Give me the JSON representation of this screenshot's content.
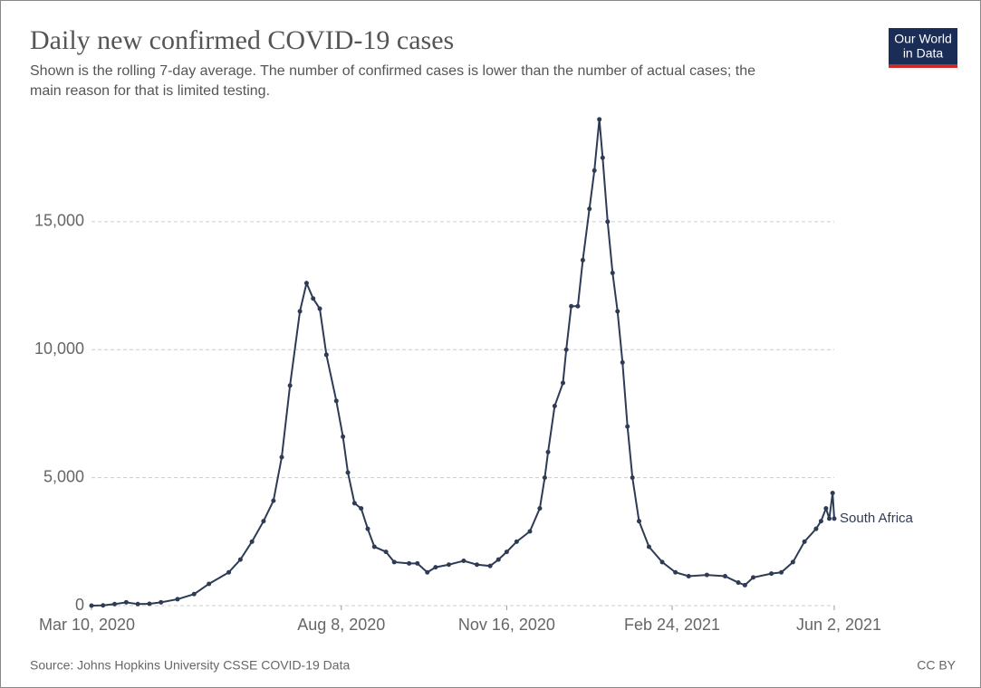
{
  "chart_data": {
    "type": "line",
    "title": "Daily new confirmed COVID-19 cases",
    "subtitle": [
      "Shown is the rolling 7-day average. The number of confirmed cases is lower than the number of actual cases; the",
      "main reason for that is limited testing."
    ],
    "logo": [
      "Our World",
      "in Data"
    ],
    "source": "Source: Johns Hopkins University CSSE COVID-19 Data",
    "license": "CC BY",
    "x": [
      "2020-03-10",
      "2020-03-17",
      "2020-03-24",
      "2020-03-31",
      "2020-04-07",
      "2020-04-14",
      "2020-04-21",
      "2020-05-01",
      "2020-05-11",
      "2020-05-20",
      "2020-06-01",
      "2020-06-08",
      "2020-06-15",
      "2020-06-22",
      "2020-06-28",
      "2020-07-03",
      "2020-07-08",
      "2020-07-14",
      "2020-07-18",
      "2020-07-22",
      "2020-07-26",
      "2020-07-30",
      "2020-08-05",
      "2020-08-09",
      "2020-08-12",
      "2020-08-16",
      "2020-08-20",
      "2020-08-24",
      "2020-08-28",
      "2020-09-04",
      "2020-09-09",
      "2020-09-18",
      "2020-09-23",
      "2020-09-29",
      "2020-10-04",
      "2020-10-12",
      "2020-10-21",
      "2020-10-29",
      "2020-11-06",
      "2020-11-11",
      "2020-11-16",
      "2020-11-22",
      "2020-11-30",
      "2020-12-06",
      "2020-12-09",
      "2020-12-11",
      "2020-12-15",
      "2020-12-20",
      "2020-12-22",
      "2020-12-25",
      "2020-12-29",
      "2021-01-01",
      "2021-01-05",
      "2021-01-08",
      "2021-01-11",
      "2021-01-13",
      "2021-01-16",
      "2021-01-19",
      "2021-01-22",
      "2021-01-25",
      "2021-01-28",
      "2021-01-31",
      "2021-02-04",
      "2021-02-10",
      "2021-02-18",
      "2021-02-26",
      "2021-03-06",
      "2021-03-17",
      "2021-03-28",
      "2021-04-05",
      "2021-04-09",
      "2021-04-14",
      "2021-04-25",
      "2021-05-01",
      "2021-05-08",
      "2021-05-15",
      "2021-05-22",
      "2021-05-25",
      "2021-05-28",
      "2021-05-30",
      "2021-06-01",
      "2021-06-02"
    ],
    "series": [
      {
        "name": "South Africa",
        "color": "#2d3b55",
        "values": [
          0,
          10,
          60,
          130,
          60,
          70,
          130,
          250,
          450,
          850,
          1300,
          1800,
          2500,
          3300,
          4100,
          5800,
          8600,
          11500,
          12600,
          12000,
          11600,
          9800,
          8000,
          6600,
          5200,
          4000,
          3800,
          3000,
          2300,
          2100,
          1700,
          1650,
          1650,
          1300,
          1500,
          1600,
          1750,
          1600,
          1550,
          1800,
          2100,
          2500,
          2900,
          3800,
          5000,
          6000,
          7800,
          8700,
          10000,
          11700,
          11700,
          13500,
          15500,
          17000,
          19000,
          17500,
          15000,
          13000,
          11500,
          9500,
          7000,
          5000,
          3300,
          2300,
          1700,
          1300,
          1150,
          1200,
          1150,
          900,
          800,
          1100,
          1250,
          1300,
          1700,
          2500,
          3000,
          3300,
          3800,
          3400,
          4400,
          3400
        ]
      }
    ],
    "xlim": [
      "2020-03-10",
      "2021-06-02"
    ],
    "xticks": [
      {
        "value": "2020-03-10",
        "label": "Mar 10, 2020"
      },
      {
        "value": "2020-08-08",
        "label": "Aug 8, 2020"
      },
      {
        "value": "2020-11-16",
        "label": "Nov 16, 2020"
      },
      {
        "value": "2021-02-24",
        "label": "Feb 24, 2021"
      },
      {
        "value": "2021-06-02",
        "label": "Jun 2, 2021"
      }
    ],
    "ylim": [
      0,
      19100
    ],
    "yticks": [
      0,
      {
        "value": 5000,
        "label": "5,000"
      },
      {
        "value": 10000,
        "label": "10,000"
      },
      {
        "value": 15000,
        "label": "15,000"
      }
    ],
    "grid": true
  }
}
